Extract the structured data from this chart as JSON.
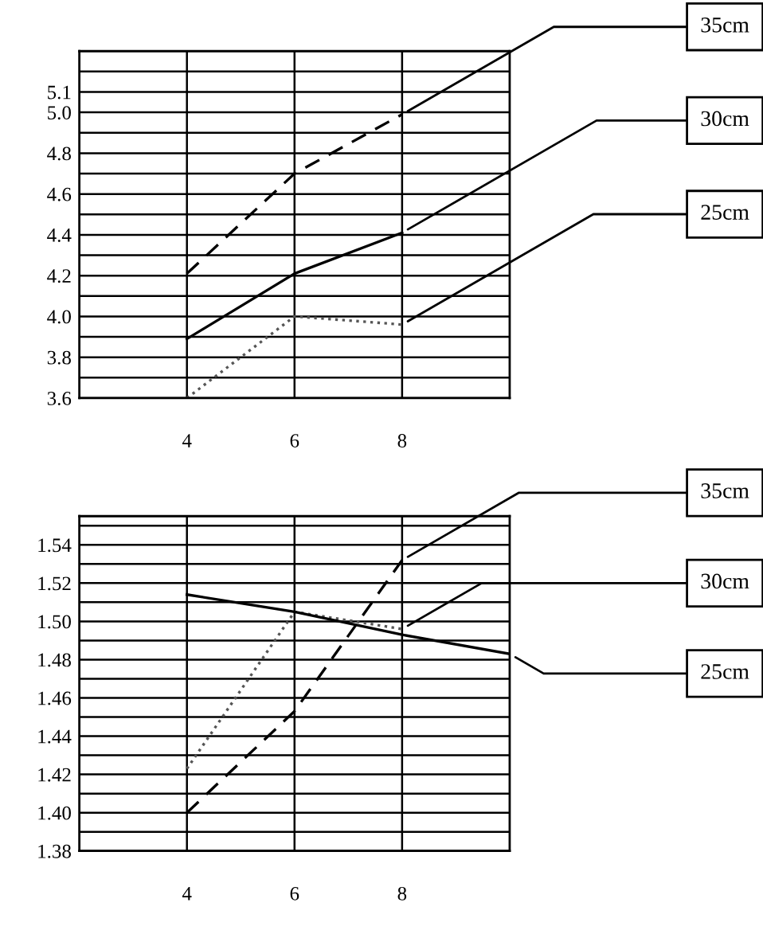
{
  "chart_data": [
    {
      "type": "line",
      "x": [
        4,
        6,
        8
      ],
      "xlim": [
        2,
        10
      ],
      "xticks": [
        4,
        6,
        8
      ],
      "ylim": [
        3.6,
        5.3
      ],
      "grid": true,
      "marker": "none",
      "yticks": [
        3.6,
        {
          "value": 3.7,
          "label": null
        },
        3.8,
        {
          "value": 3.9,
          "label": null
        },
        {
          "value": 4.0,
          "label": "4.0"
        },
        {
          "value": 4.1,
          "label": null
        },
        4.2,
        {
          "value": 4.3,
          "label": null
        },
        4.4,
        {
          "value": 4.5,
          "label": null
        },
        4.6,
        {
          "value": 4.7,
          "label": null
        },
        4.8,
        {
          "value": 4.9,
          "label": null
        },
        {
          "value": 5.0,
          "label": "5.0"
        },
        5.1,
        {
          "value": 5.2,
          "label": null
        }
      ],
      "series": [
        {
          "name": "35cm",
          "color": "#000000",
          "line_style": "dashed",
          "values": [
            4.21,
            4.7,
            4.99
          ]
        },
        {
          "name": "30cm",
          "color": "#000000",
          "line_style": "solid",
          "values": [
            3.89,
            4.21,
            4.41
          ]
        },
        {
          "name": "25cm",
          "color": "#555555",
          "line_style": "dotted",
          "values": [
            3.6,
            4.0,
            3.96
          ]
        }
      ]
    },
    {
      "type": "line",
      "x": [
        4,
        6,
        8
      ],
      "xlim": [
        2,
        10
      ],
      "xticks": [
        4,
        6,
        8
      ],
      "ylim": [
        1.38,
        1.555
      ],
      "grid": true,
      "marker": "none",
      "yticks": [
        1.38,
        {
          "value": 1.39,
          "label": null
        },
        {
          "value": 1.4,
          "label": "1.40"
        },
        {
          "value": 1.41,
          "label": null
        },
        1.42,
        {
          "value": 1.43,
          "label": null
        },
        1.44,
        {
          "value": 1.45,
          "label": null
        },
        1.46,
        {
          "value": 1.47,
          "label": null
        },
        1.48,
        {
          "value": 1.49,
          "label": null
        },
        {
          "value": 1.5,
          "label": "1.50"
        },
        {
          "value": 1.51,
          "label": null
        },
        1.52,
        {
          "value": 1.53,
          "label": null
        },
        1.54,
        {
          "value": 1.55,
          "label": null
        }
      ],
      "series": [
        {
          "name": "35cm",
          "color": "#000000",
          "line_style": "dashed",
          "values": [
            1.4,
            1.453,
            1.532
          ]
        },
        {
          "name": "30cm",
          "color": "#555555",
          "line_style": "dotted",
          "values": [
            1.423,
            1.505,
            1.496
          ]
        },
        {
          "name": "25cm",
          "color": "#000000",
          "line_style": "solid",
          "x": [
            4,
            6,
            8,
            10
          ],
          "values": [
            1.514,
            1.505,
            1.493,
            1.483
          ]
        }
      ]
    }
  ]
}
